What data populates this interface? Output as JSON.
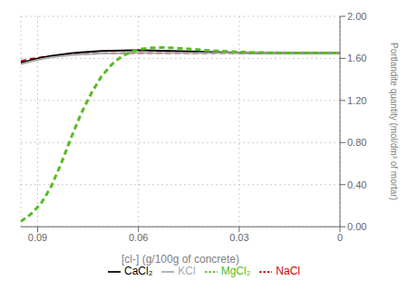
{
  "chart_data": {
    "type": "line",
    "xlabel": "[cl-] (g/100g of concrete)",
    "ylabel": "Portlandite quantity (mol/dm³ of mortar)",
    "xlim": [
      0.095,
      0.0
    ],
    "ylim": [
      0.0,
      2.0
    ],
    "xticks": [
      0.09,
      0.06,
      0.03,
      0
    ],
    "yticks": [
      {
        "value": 0.0,
        "label": "0.00"
      },
      {
        "value": 0.4,
        "label": "0.40"
      },
      {
        "value": 0.8,
        "label": "0.80"
      },
      {
        "value": 1.2,
        "label": "1.20"
      },
      {
        "value": 1.6,
        "label": "1.60"
      },
      {
        "value": 2.0,
        "label": "2.00"
      }
    ],
    "grid": true,
    "legend": "lower center",
    "x": [
      0.095,
      0.092,
      0.089,
      0.086,
      0.083,
      0.08,
      0.077,
      0.074,
      0.071,
      0.068,
      0.065,
      0.062,
      0.059,
      0.056,
      0.053,
      0.05,
      0.045,
      0.04,
      0.035,
      0.03,
      0.025,
      0.02,
      0.015,
      0.01,
      0.005,
      0.0
    ],
    "series": [
      {
        "name": "NaCl",
        "color": "#cc0000",
        "line_style": "dashed",
        "values": [
          1.575,
          1.595,
          1.61,
          1.622,
          1.632,
          1.638,
          1.642,
          1.645,
          1.647,
          1.649,
          1.65,
          1.651,
          1.651,
          1.651,
          1.651,
          1.651,
          1.651,
          1.651,
          1.651,
          1.651,
          1.651,
          1.651,
          1.651,
          1.651,
          1.651,
          1.651
        ]
      },
      {
        "name": "CaCl₂",
        "color": "#000000",
        "line_style": "solid",
        "values": [
          1.558,
          1.583,
          1.605,
          1.623,
          1.637,
          1.649,
          1.658,
          1.665,
          1.67,
          1.673,
          1.675,
          1.676,
          1.676,
          1.675,
          1.673,
          1.671,
          1.666,
          1.661,
          1.657,
          1.654,
          1.652,
          1.651,
          1.651,
          1.651,
          1.651,
          1.651
        ]
      },
      {
        "name": "KCl",
        "color": "#aaaaaa",
        "line_style": "solid",
        "values": [
          1.545,
          1.572,
          1.593,
          1.61,
          1.622,
          1.631,
          1.638,
          1.643,
          1.646,
          1.648,
          1.65,
          1.651,
          1.651,
          1.651,
          1.651,
          1.651,
          1.651,
          1.651,
          1.651,
          1.651,
          1.651,
          1.651,
          1.651,
          1.651,
          1.651,
          1.651
        ]
      },
      {
        "name": "MgCl₂",
        "color": "#55bb22",
        "line_style": "dashed",
        "values": [
          0.05,
          0.12,
          0.22,
          0.38,
          0.6,
          0.85,
          1.08,
          1.27,
          1.43,
          1.54,
          1.62,
          1.665,
          1.69,
          1.7,
          1.703,
          1.7,
          1.69,
          1.678,
          1.668,
          1.661,
          1.656,
          1.653,
          1.651,
          1.651,
          1.651,
          1.651
        ]
      }
    ]
  }
}
